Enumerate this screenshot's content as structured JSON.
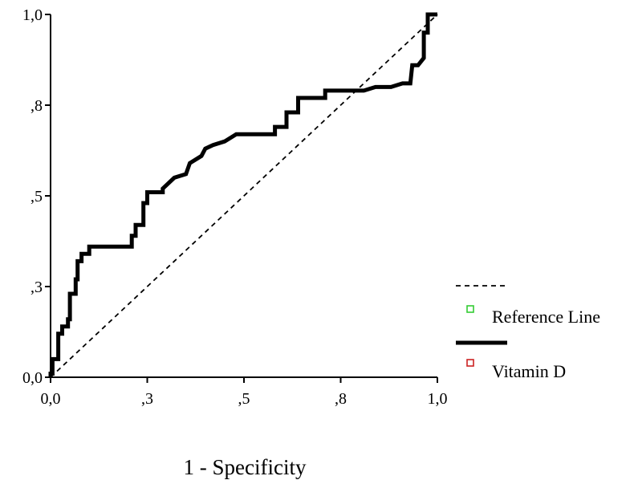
{
  "chart_data": {
    "type": "line",
    "xlabel": "1 - Specificity",
    "ylabel": "",
    "xlim": [
      0,
      1
    ],
    "ylim": [
      0,
      1
    ],
    "x_ticks": [
      {
        "value": 0.0,
        "label": "0,0"
      },
      {
        "value": 0.25,
        "label": ",3"
      },
      {
        "value": 0.5,
        "label": ",5"
      },
      {
        "value": 0.75,
        "label": ",8"
      },
      {
        "value": 1.0,
        "label": "1,0"
      }
    ],
    "y_ticks": [
      {
        "value": 0.0,
        "label": "0,0"
      },
      {
        "value": 0.25,
        "label": ",3"
      },
      {
        "value": 0.5,
        "label": ",5"
      },
      {
        "value": 0.75,
        "label": ",8"
      },
      {
        "value": 1.0,
        "label": "1,0"
      }
    ],
    "grid": false,
    "legend_position": "right",
    "series": [
      {
        "name": "Reference Line",
        "style": "dashed",
        "color": "#000000",
        "marker_color": "#33cc33",
        "points": [
          [
            0.0,
            0.0
          ],
          [
            1.0,
            1.0
          ]
        ]
      },
      {
        "name": "Vitamin D",
        "style": "solid",
        "color": "#000000",
        "marker_color": "#cc2222",
        "points": [
          [
            0.0,
            0.0
          ],
          [
            0.0,
            0.01
          ],
          [
            0.005,
            0.01
          ],
          [
            0.005,
            0.05
          ],
          [
            0.02,
            0.05
          ],
          [
            0.02,
            0.12
          ],
          [
            0.03,
            0.12
          ],
          [
            0.03,
            0.14
          ],
          [
            0.045,
            0.14
          ],
          [
            0.045,
            0.16
          ],
          [
            0.05,
            0.16
          ],
          [
            0.05,
            0.23
          ],
          [
            0.065,
            0.23
          ],
          [
            0.065,
            0.27
          ],
          [
            0.07,
            0.27
          ],
          [
            0.07,
            0.32
          ],
          [
            0.08,
            0.32
          ],
          [
            0.08,
            0.34
          ],
          [
            0.1,
            0.34
          ],
          [
            0.1,
            0.36
          ],
          [
            0.12,
            0.36
          ],
          [
            0.21,
            0.36
          ],
          [
            0.21,
            0.39
          ],
          [
            0.22,
            0.39
          ],
          [
            0.22,
            0.42
          ],
          [
            0.24,
            0.42
          ],
          [
            0.24,
            0.48
          ],
          [
            0.25,
            0.48
          ],
          [
            0.25,
            0.51
          ],
          [
            0.29,
            0.51
          ],
          [
            0.29,
            0.52
          ],
          [
            0.3,
            0.53
          ],
          [
            0.32,
            0.55
          ],
          [
            0.35,
            0.56
          ],
          [
            0.36,
            0.59
          ],
          [
            0.39,
            0.61
          ],
          [
            0.4,
            0.63
          ],
          [
            0.42,
            0.64
          ],
          [
            0.45,
            0.65
          ],
          [
            0.48,
            0.67
          ],
          [
            0.52,
            0.67
          ],
          [
            0.58,
            0.67
          ],
          [
            0.58,
            0.69
          ],
          [
            0.61,
            0.69
          ],
          [
            0.61,
            0.73
          ],
          [
            0.64,
            0.73
          ],
          [
            0.64,
            0.77
          ],
          [
            0.71,
            0.77
          ],
          [
            0.71,
            0.79
          ],
          [
            0.77,
            0.79
          ],
          [
            0.81,
            0.79
          ],
          [
            0.84,
            0.8
          ],
          [
            0.88,
            0.8
          ],
          [
            0.91,
            0.81
          ],
          [
            0.93,
            0.81
          ],
          [
            0.935,
            0.86
          ],
          [
            0.95,
            0.86
          ],
          [
            0.965,
            0.88
          ],
          [
            0.965,
            0.95
          ],
          [
            0.975,
            0.95
          ],
          [
            0.975,
            1.0
          ],
          [
            1.0,
            1.0
          ]
        ]
      }
    ]
  }
}
